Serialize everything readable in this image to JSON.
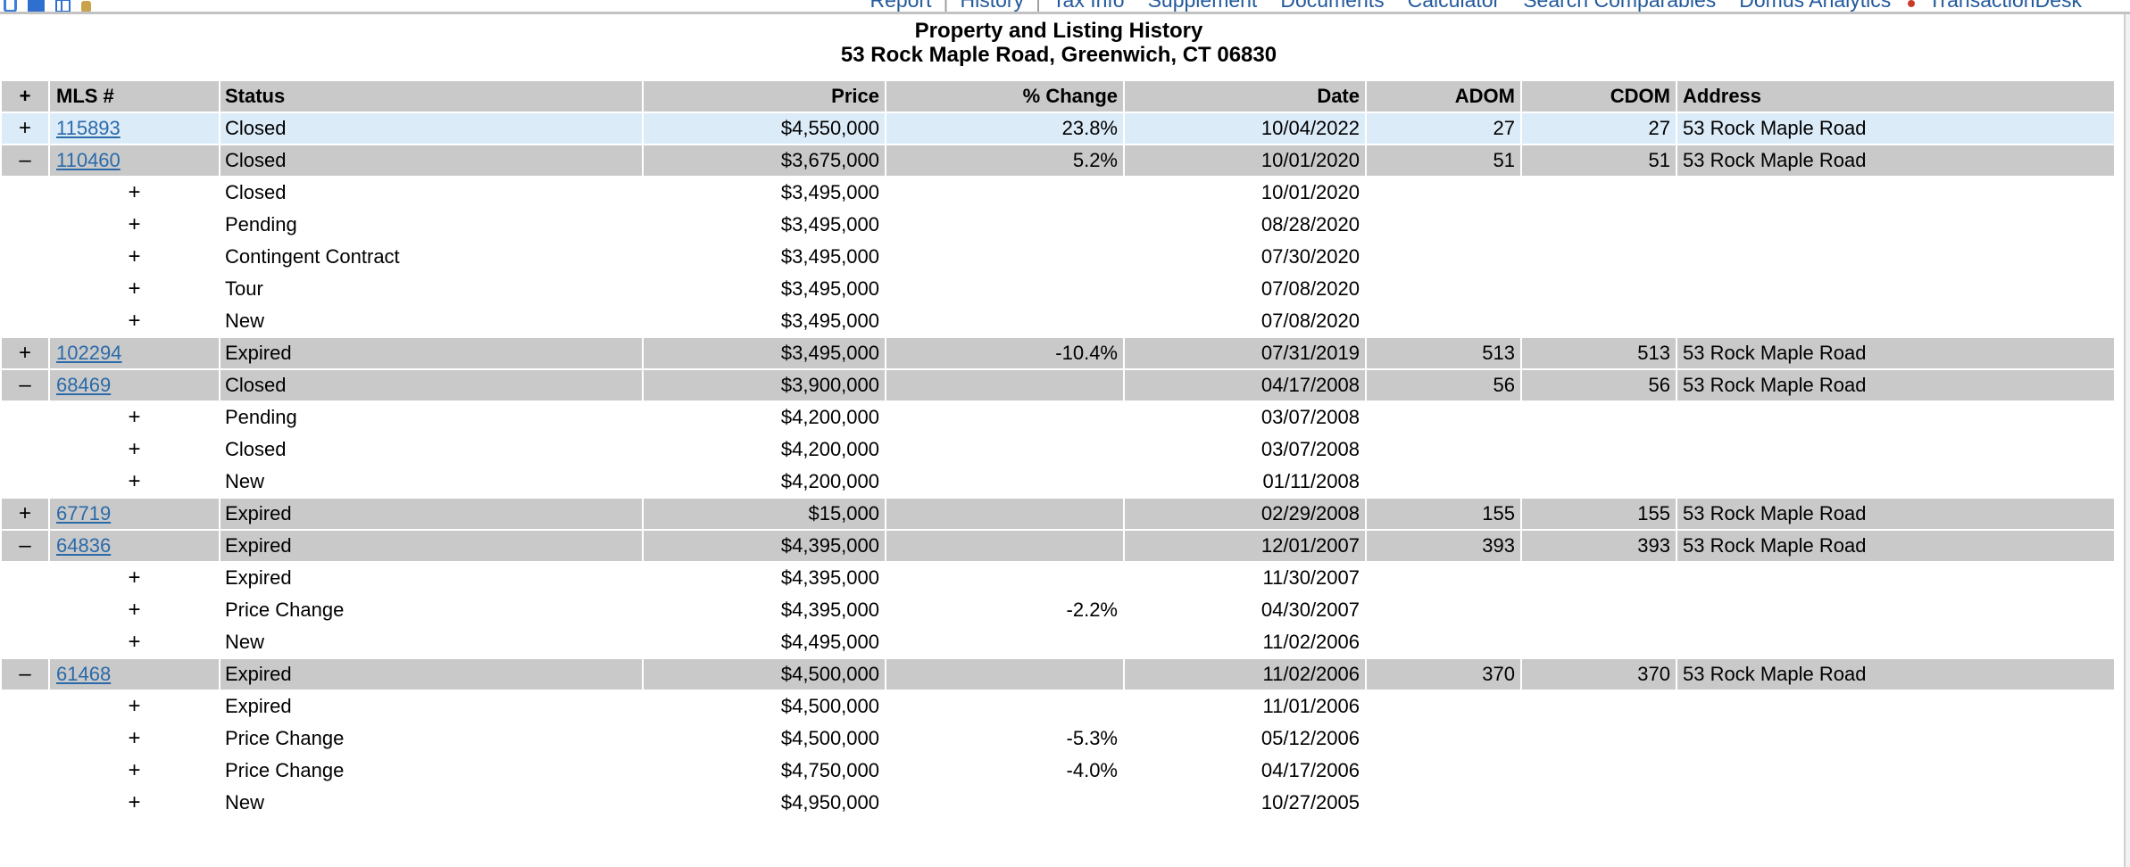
{
  "topbar": {
    "separator": "|",
    "icons": [
      "document-icon",
      "layout-icon",
      "grid-icon",
      "key-icon"
    ],
    "nav": [
      {
        "label": "Report"
      },
      {
        "label": "History"
      },
      {
        "label": "Tax Info"
      },
      {
        "label": "Supplement"
      },
      {
        "label": "Documents"
      },
      {
        "label": "Calculator"
      },
      {
        "label": "Search Comparables"
      },
      {
        "label": "Domus Analytics"
      },
      {
        "label": "TransactionDesk"
      }
    ]
  },
  "title": {
    "line1": "Property and Listing History",
    "line2": "53 Rock Maple Road, Greenwich, CT 06830"
  },
  "table": {
    "headers": {
      "expand": "+",
      "mls": "MLS #",
      "status": "Status",
      "price": "Price",
      "pct": "% Change",
      "date": "Date",
      "adom": "ADOM",
      "cdom": "CDOM",
      "address": "Address"
    },
    "rows": [
      {
        "level": "parent",
        "highlight": true,
        "expand": "+",
        "mls": "115893",
        "status": "Closed",
        "price": "$4,550,000",
        "pct": "23.8%",
        "date": "10/04/2022",
        "adom": "27",
        "cdom": "27",
        "address": "53 Rock Maple Road"
      },
      {
        "level": "parent",
        "highlight": false,
        "expand": "–",
        "mls": "110460",
        "status": "Closed",
        "price": "$3,675,000",
        "pct": "5.2%",
        "date": "10/01/2020",
        "adom": "51",
        "cdom": "51",
        "address": "53 Rock Maple Road"
      },
      {
        "level": "sub",
        "expand": "+",
        "status": "Closed",
        "price": "$3,495,000",
        "pct": "",
        "date": "10/01/2020",
        "mls": "",
        "adom": "",
        "cdom": "",
        "address": ""
      },
      {
        "level": "sub",
        "expand": "+",
        "status": "Pending",
        "price": "$3,495,000",
        "pct": "",
        "date": "08/28/2020",
        "mls": "",
        "adom": "",
        "cdom": "",
        "address": ""
      },
      {
        "level": "sub",
        "expand": "+",
        "status": "Contingent Contract",
        "price": "$3,495,000",
        "pct": "",
        "date": "07/30/2020",
        "mls": "",
        "adom": "",
        "cdom": "",
        "address": ""
      },
      {
        "level": "sub",
        "expand": "+",
        "status": "Tour",
        "price": "$3,495,000",
        "pct": "",
        "date": "07/08/2020",
        "mls": "",
        "adom": "",
        "cdom": "",
        "address": ""
      },
      {
        "level": "sub",
        "expand": "+",
        "status": "New",
        "price": "$3,495,000",
        "pct": "",
        "date": "07/08/2020",
        "mls": "",
        "adom": "",
        "cdom": "",
        "address": ""
      },
      {
        "level": "parent",
        "highlight": false,
        "expand": "+",
        "mls": "102294",
        "status": "Expired",
        "price": "$3,495,000",
        "pct": "-10.4%",
        "date": "07/31/2019",
        "adom": "513",
        "cdom": "513",
        "address": "53 Rock Maple Road"
      },
      {
        "level": "parent",
        "highlight": false,
        "expand": "–",
        "mls": "68469",
        "status": "Closed",
        "price": "$3,900,000",
        "pct": "",
        "date": "04/17/2008",
        "adom": "56",
        "cdom": "56",
        "address": "53 Rock Maple Road"
      },
      {
        "level": "sub",
        "expand": "+",
        "status": "Pending",
        "price": "$4,200,000",
        "pct": "",
        "date": "03/07/2008",
        "mls": "",
        "adom": "",
        "cdom": "",
        "address": ""
      },
      {
        "level": "sub",
        "expand": "+",
        "status": "Closed",
        "price": "$4,200,000",
        "pct": "",
        "date": "03/07/2008",
        "mls": "",
        "adom": "",
        "cdom": "",
        "address": ""
      },
      {
        "level": "sub",
        "expand": "+",
        "status": "New",
        "price": "$4,200,000",
        "pct": "",
        "date": "01/11/2008",
        "mls": "",
        "adom": "",
        "cdom": "",
        "address": ""
      },
      {
        "level": "parent",
        "highlight": false,
        "expand": "+",
        "mls": "67719",
        "status": "Expired",
        "price": "$15,000",
        "pct": "",
        "date": "02/29/2008",
        "adom": "155",
        "cdom": "155",
        "address": "53 Rock Maple Road"
      },
      {
        "level": "parent",
        "highlight": false,
        "expand": "–",
        "mls": "64836",
        "status": "Expired",
        "price": "$4,395,000",
        "pct": "",
        "date": "12/01/2007",
        "adom": "393",
        "cdom": "393",
        "address": "53 Rock Maple Road"
      },
      {
        "level": "sub",
        "expand": "+",
        "status": "Expired",
        "price": "$4,395,000",
        "pct": "",
        "date": "11/30/2007",
        "mls": "",
        "adom": "",
        "cdom": "",
        "address": ""
      },
      {
        "level": "sub",
        "expand": "+",
        "status": "Price Change",
        "price": "$4,395,000",
        "pct": "-2.2%",
        "date": "04/30/2007",
        "mls": "",
        "adom": "",
        "cdom": "",
        "address": ""
      },
      {
        "level": "sub",
        "expand": "+",
        "status": "New",
        "price": "$4,495,000",
        "pct": "",
        "date": "11/02/2006",
        "mls": "",
        "adom": "",
        "cdom": "",
        "address": ""
      },
      {
        "level": "parent",
        "highlight": false,
        "expand": "–",
        "mls": "61468",
        "status": "Expired",
        "price": "$4,500,000",
        "pct": "",
        "date": "11/02/2006",
        "adom": "370",
        "cdom": "370",
        "address": "53 Rock Maple Road"
      },
      {
        "level": "sub",
        "expand": "+",
        "status": "Expired",
        "price": "$4,500,000",
        "pct": "",
        "date": "11/01/2006",
        "mls": "",
        "adom": "",
        "cdom": "",
        "address": ""
      },
      {
        "level": "sub",
        "expand": "+",
        "status": "Price Change",
        "price": "$4,500,000",
        "pct": "-5.3%",
        "date": "05/12/2006",
        "mls": "",
        "adom": "",
        "cdom": "",
        "address": ""
      },
      {
        "level": "sub",
        "expand": "+",
        "status": "Price Change",
        "price": "$4,750,000",
        "pct": "-4.0%",
        "date": "04/17/2006",
        "mls": "",
        "adom": "",
        "cdom": "",
        "address": ""
      },
      {
        "level": "sub",
        "expand": "+",
        "status": "New",
        "price": "$4,950,000",
        "pct": "",
        "date": "10/27/2005",
        "mls": "",
        "adom": "",
        "cdom": "",
        "address": ""
      }
    ]
  },
  "colors": {
    "row_gray": "#c9c9c9",
    "row_highlight_blue": "#dcebf8",
    "link_blue": "#2b6aa9",
    "nav_blue": "#235a9c"
  }
}
